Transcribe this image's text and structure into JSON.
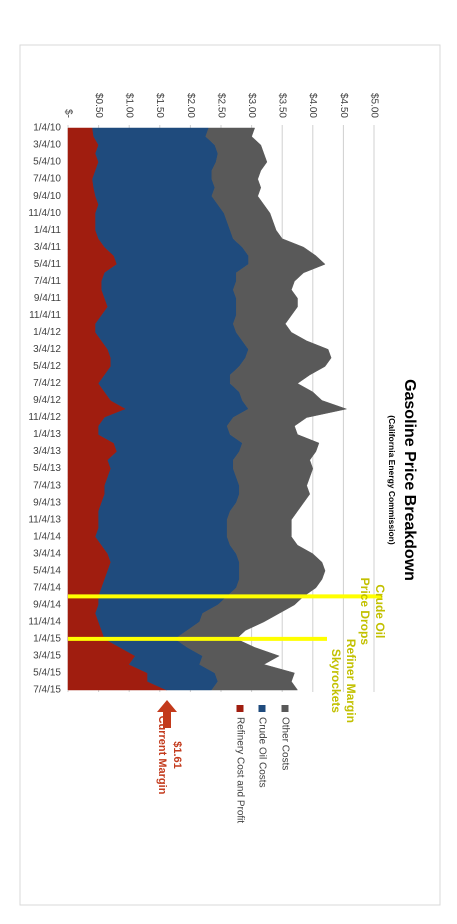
{
  "chart_data": {
    "type": "stacked_area",
    "title": "Gasoline Price Breakdown",
    "subtitle": "(California Energy Commission)",
    "categories": [
      "1/4/10",
      null,
      "3/4/10",
      null,
      "5/4/10",
      null,
      "7/4/10",
      null,
      "9/4/10",
      null,
      "11/4/10",
      null,
      "1/4/11",
      null,
      "3/4/11",
      null,
      "5/4/11",
      null,
      "7/4/11",
      null,
      "9/4/11",
      null,
      "11/4/11",
      null,
      "1/4/12",
      null,
      "3/4/12",
      null,
      "5/4/12",
      null,
      "7/4/12",
      null,
      "9/4/12",
      null,
      "11/4/12",
      null,
      "1/4/13",
      null,
      "3/4/13",
      null,
      "5/4/13",
      null,
      "7/4/13",
      null,
      "9/4/13",
      null,
      "11/4/13",
      null,
      "1/4/14",
      null,
      "3/4/14",
      null,
      "5/4/14",
      null,
      "7/4/14",
      null,
      "9/4/14",
      null,
      "11/4/14",
      null,
      "1/4/15",
      null,
      "3/4/15",
      null,
      "5/4/15",
      null,
      "7/4/15"
    ],
    "series": [
      {
        "name": "Refinery Cost and Profit",
        "color": "#a01d0f",
        "values": [
          0.4,
          0.42,
          0.5,
          0.45,
          0.5,
          0.45,
          0.4,
          0.42,
          0.45,
          0.5,
          0.45,
          0.45,
          0.45,
          0.5,
          0.6,
          0.75,
          0.8,
          0.6,
          0.55,
          0.55,
          0.6,
          0.65,
          0.55,
          0.45,
          0.45,
          0.55,
          0.65,
          0.7,
          0.7,
          0.6,
          0.5,
          0.6,
          0.7,
          0.95,
          0.6,
          0.5,
          0.5,
          0.75,
          0.8,
          0.65,
          0.7,
          0.65,
          0.6,
          0.6,
          0.55,
          0.5,
          0.5,
          0.5,
          0.45,
          0.55,
          0.65,
          0.7,
          0.65,
          0.6,
          0.55,
          0.5,
          0.5,
          0.45,
          0.5,
          0.55,
          0.6,
          0.85,
          1.1,
          1.0,
          1.3,
          1.3,
          1.61
        ]
      },
      {
        "name": "Crude Oil Costs",
        "color": "#1f4b7d",
        "values": [
          1.9,
          1.83,
          1.9,
          2.0,
          1.92,
          1.9,
          1.95,
          1.98,
          1.9,
          1.95,
          2.1,
          2.15,
          2.2,
          2.2,
          2.25,
          2.2,
          2.15,
          2.15,
          2.2,
          2.15,
          2.15,
          2.1,
          2.2,
          2.25,
          2.3,
          2.3,
          2.3,
          2.2,
          2.1,
          2.05,
          2.15,
          2.2,
          2.15,
          2.0,
          2.1,
          2.1,
          2.15,
          2.1,
          2.0,
          2.05,
          2.0,
          2.1,
          2.2,
          2.2,
          2.2,
          2.15,
          2.1,
          2.1,
          2.15,
          2.1,
          2.1,
          2.1,
          2.15,
          2.2,
          2.2,
          2.1,
          1.95,
          1.75,
          1.65,
          1.4,
          1.15,
          1.1,
          1.1,
          1.15,
          1.1,
          1.15,
          0.74
        ]
      },
      {
        "name": "Other Costs",
        "color": "#595959",
        "values": [
          0.75,
          0.75,
          0.75,
          0.75,
          0.83,
          0.8,
          0.75,
          0.75,
          0.75,
          0.75,
          0.75,
          0.75,
          0.75,
          0.8,
          1.0,
          1.1,
          1.25,
          1.1,
          0.95,
          0.95,
          1.0,
          1.0,
          0.9,
          0.85,
          0.9,
          1.05,
          1.3,
          1.4,
          1.4,
          1.3,
          1.1,
          1.2,
          1.3,
          1.6,
          1.2,
          1.1,
          1.1,
          1.25,
          1.25,
          1.25,
          1.3,
          1.2,
          1.1,
          1.15,
          1.1,
          1.1,
          1.05,
          1.05,
          1.05,
          1.1,
          1.25,
          1.35,
          1.4,
          1.35,
          1.3,
          1.25,
          1.25,
          1.25,
          1.05,
          0.95,
          1.0,
          1.1,
          1.25,
          1.05,
          1.3,
          1.2,
          1.4
        ]
      }
    ],
    "ylim": [
      0,
      5
    ],
    "yticks": [
      {
        "value": 0,
        "label": "$-"
      },
      {
        "value": 0.5,
        "label": "$0.50"
      },
      {
        "value": 1,
        "label": "$1.00"
      },
      {
        "value": 1.5,
        "label": "$1.50"
      },
      {
        "value": 2,
        "label": "$2.00"
      },
      {
        "value": 2.5,
        "label": "$2.50"
      },
      {
        "value": 3,
        "label": "$3.00"
      },
      {
        "value": 3.5,
        "label": "$3.50"
      },
      {
        "value": 4,
        "label": "$4.00"
      },
      {
        "value": 4.5,
        "label": "$4.50"
      },
      {
        "value": 5,
        "label": "$5.00"
      }
    ],
    "grid": true,
    "legend": "right",
    "annotations": [
      {
        "lines": [
          "Crude Oil",
          "Price Drops"
        ],
        "category_index": 55,
        "color": "#c2c000",
        "line_color": "#ffff00"
      },
      {
        "lines": [
          "Refiner Margin",
          "Skyrockets"
        ],
        "category_index": 60,
        "color": "#c2c000",
        "line_color": "#ffff00"
      }
    ],
    "callout": {
      "lines": [
        "$1.61",
        "Current Margin"
      ],
      "color": "#c33a1c"
    }
  }
}
